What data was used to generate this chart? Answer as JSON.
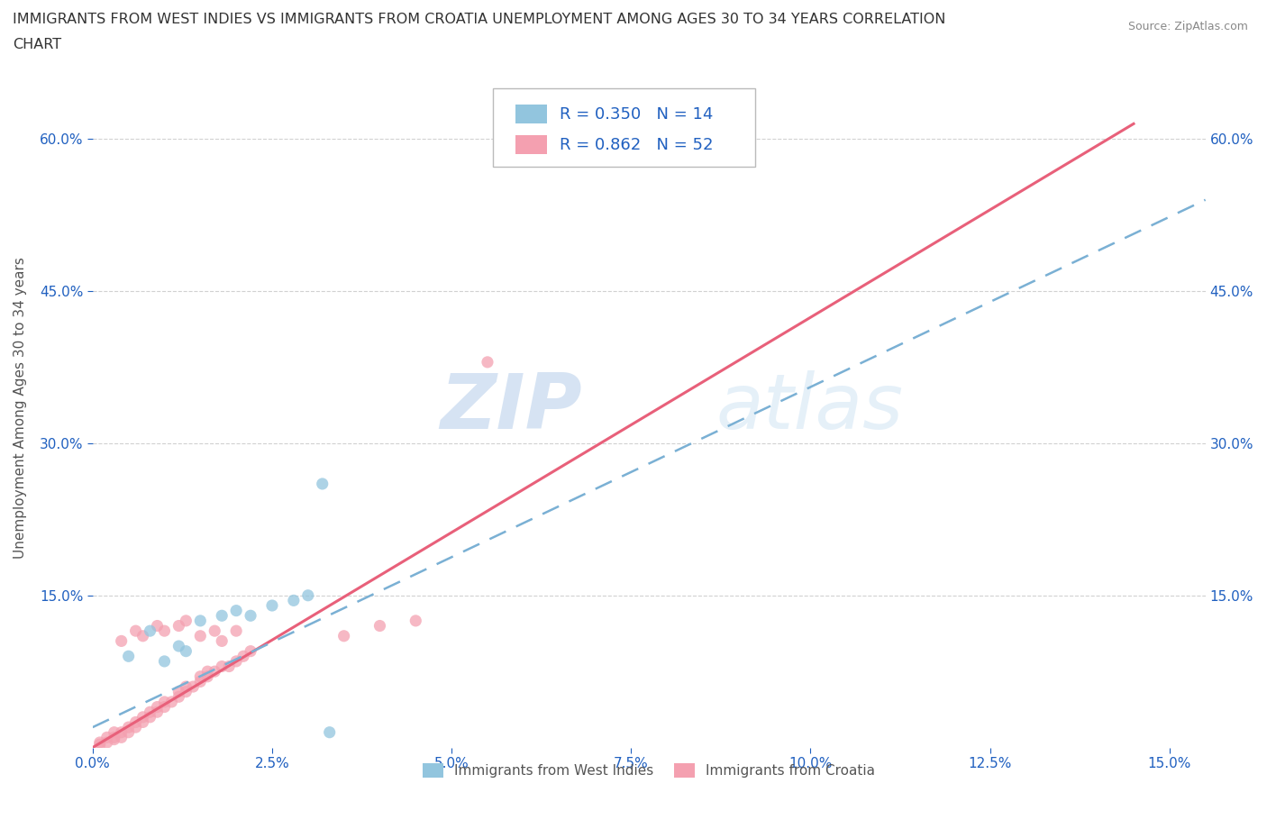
{
  "title_line1": "IMMIGRANTS FROM WEST INDIES VS IMMIGRANTS FROM CROATIA UNEMPLOYMENT AMONG AGES 30 TO 34 YEARS CORRELATION",
  "title_line2": "CHART",
  "source_text": "Source: ZipAtlas.com",
  "ylabel": "Unemployment Among Ages 30 to 34 years",
  "watermark_zip": "ZIP",
  "watermark_atlas": "atlas",
  "west_indies_color": "#92c5de",
  "croatia_color": "#f4a0b0",
  "croatia_line_color": "#e8607a",
  "west_indies_line_color": "#7ab0d4",
  "r_west_indies": 0.35,
  "n_west_indies": 14,
  "r_croatia": 0.862,
  "n_croatia": 52,
  "legend_r_color": "#2060c0",
  "west_indies_scatter": [
    [
      0.005,
      0.09
    ],
    [
      0.008,
      0.115
    ],
    [
      0.01,
      0.085
    ],
    [
      0.012,
      0.1
    ],
    [
      0.013,
      0.095
    ],
    [
      0.015,
      0.125
    ],
    [
      0.018,
      0.13
    ],
    [
      0.02,
      0.135
    ],
    [
      0.022,
      0.13
    ],
    [
      0.025,
      0.14
    ],
    [
      0.028,
      0.145
    ],
    [
      0.03,
      0.15
    ],
    [
      0.032,
      0.26
    ],
    [
      0.033,
      0.015
    ]
  ],
  "croatia_scatter": [
    [
      0.001,
      0.005
    ],
    [
      0.002,
      0.005
    ],
    [
      0.002,
      0.01
    ],
    [
      0.003,
      0.008
    ],
    [
      0.003,
      0.01
    ],
    [
      0.003,
      0.015
    ],
    [
      0.004,
      0.01
    ],
    [
      0.004,
      0.015
    ],
    [
      0.005,
      0.015
    ],
    [
      0.005,
      0.02
    ],
    [
      0.006,
      0.02
    ],
    [
      0.006,
      0.025
    ],
    [
      0.007,
      0.025
    ],
    [
      0.007,
      0.03
    ],
    [
      0.008,
      0.03
    ],
    [
      0.008,
      0.035
    ],
    [
      0.009,
      0.035
    ],
    [
      0.009,
      0.04
    ],
    [
      0.01,
      0.04
    ],
    [
      0.01,
      0.045
    ],
    [
      0.011,
      0.045
    ],
    [
      0.012,
      0.05
    ],
    [
      0.012,
      0.055
    ],
    [
      0.013,
      0.055
    ],
    [
      0.013,
      0.06
    ],
    [
      0.014,
      0.06
    ],
    [
      0.015,
      0.065
    ],
    [
      0.015,
      0.07
    ],
    [
      0.016,
      0.07
    ],
    [
      0.016,
      0.075
    ],
    [
      0.017,
      0.075
    ],
    [
      0.018,
      0.08
    ],
    [
      0.019,
      0.08
    ],
    [
      0.02,
      0.085
    ],
    [
      0.021,
      0.09
    ],
    [
      0.022,
      0.095
    ],
    [
      0.004,
      0.105
    ],
    [
      0.006,
      0.115
    ],
    [
      0.007,
      0.11
    ],
    [
      0.009,
      0.12
    ],
    [
      0.01,
      0.115
    ],
    [
      0.012,
      0.12
    ],
    [
      0.013,
      0.125
    ],
    [
      0.015,
      0.11
    ],
    [
      0.017,
      0.115
    ],
    [
      0.018,
      0.105
    ],
    [
      0.02,
      0.115
    ],
    [
      0.035,
      0.11
    ],
    [
      0.04,
      0.12
    ],
    [
      0.045,
      0.125
    ],
    [
      0.055,
      0.38
    ],
    [
      0.001,
      0.003
    ]
  ],
  "xlim": [
    0.0,
    0.155
  ],
  "ylim": [
    0.0,
    0.67
  ],
  "x_ticks": [
    0.0,
    0.025,
    0.05,
    0.075,
    0.1,
    0.125,
    0.15
  ],
  "x_tick_labels": [
    "0.0%",
    "2.5%",
    "5.0%",
    "7.5%",
    "10.0%",
    "12.5%",
    "15.0%"
  ],
  "y_ticks": [
    0.15,
    0.3,
    0.45,
    0.6
  ],
  "y_tick_labels": [
    "15.0%",
    "30.0%",
    "45.0%",
    "60.0%"
  ],
  "grid_color": "#cccccc",
  "background_color": "#ffffff",
  "axis_tick_color": "#2060c0",
  "legend_bottom_labels": [
    "Immigrants from West Indies",
    "Immigrants from Croatia"
  ],
  "croatia_line_x": [
    0.0,
    0.145
  ],
  "croatia_line_y": [
    0.0,
    0.615
  ],
  "west_indies_line_x": [
    0.0,
    0.155
  ],
  "west_indies_line_y": [
    0.02,
    0.54
  ]
}
